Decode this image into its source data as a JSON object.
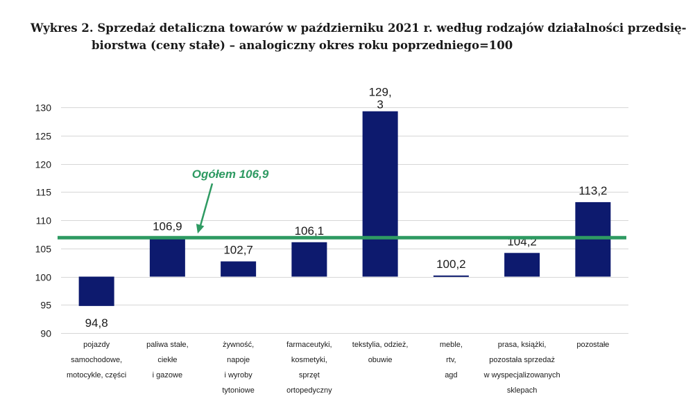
{
  "title": {
    "line1": "Wykres 2. Sprzedaż detaliczna towarów w październiku 2021 r. według rodzajów działalności przedsię-",
    "line2": "biorstwa (ceny stałe) – analogiczny okres roku poprzedniego=100"
  },
  "colors": {
    "bar": "#0d1a6e",
    "reference_line": "#2e9a62",
    "grid": "#d6d6d6"
  },
  "chart_data": {
    "type": "bar",
    "title": "Wykres 2. Sprzedaż detaliczna towarów w październiku 2021 r. według rodzajów działalności przedsiębiorstwa (ceny stałe) – analogiczny okres roku poprzedniego=100",
    "categories": [
      "pojazdy samochodowe, motocykle, części",
      "paliwa stałe, ciekłe i gazowe",
      "żywność, napoje i wyroby tytoniowe",
      "farmaceutyki, kosmetyki, sprzęt ortopedyczny",
      "tekstylia, odzież, obuwie",
      "meble, rtv, agd",
      "prasa, książki, pozostała sprzedaż w wyspecjalizowanych sklepach",
      "pozostałe"
    ],
    "category_lines": [
      [
        "pojazdy",
        "samochodowe,",
        "motocykle, części"
      ],
      [
        "paliwa stałe,",
        "ciekłe",
        "i gazowe"
      ],
      [
        "żywność,",
        "napoje",
        "i wyroby",
        "tytoniowe"
      ],
      [
        "farmaceutyki,",
        "kosmetyki,",
        "sprzęt",
        "ortopedyczny"
      ],
      [
        "tekstylia, odzież,",
        "obuwie"
      ],
      [
        "meble,",
        "rtv,",
        "agd"
      ],
      [
        "prasa, książki,",
        "pozostała sprzedaż",
        "w wyspecjalizowanych",
        "sklepach"
      ],
      [
        "pozostałe"
      ]
    ],
    "values": [
      94.8,
      106.9,
      102.7,
      106.1,
      129.3,
      100.2,
      104.2,
      113.2
    ],
    "value_labels": [
      [
        "94,8"
      ],
      [
        "106,9"
      ],
      [
        "102,7"
      ],
      [
        "106,1"
      ],
      [
        "129,",
        "3"
      ],
      [
        "100,2"
      ],
      [
        "104,2"
      ],
      [
        "113,2"
      ]
    ],
    "baseline": 100,
    "ylim": [
      90,
      130
    ],
    "yticks": [
      90,
      95,
      100,
      105,
      110,
      115,
      120,
      125,
      130
    ],
    "grid": true,
    "xlabel": "",
    "ylabel": "",
    "reference": {
      "value": 106.9,
      "label": "Ogółem 106,9"
    }
  }
}
